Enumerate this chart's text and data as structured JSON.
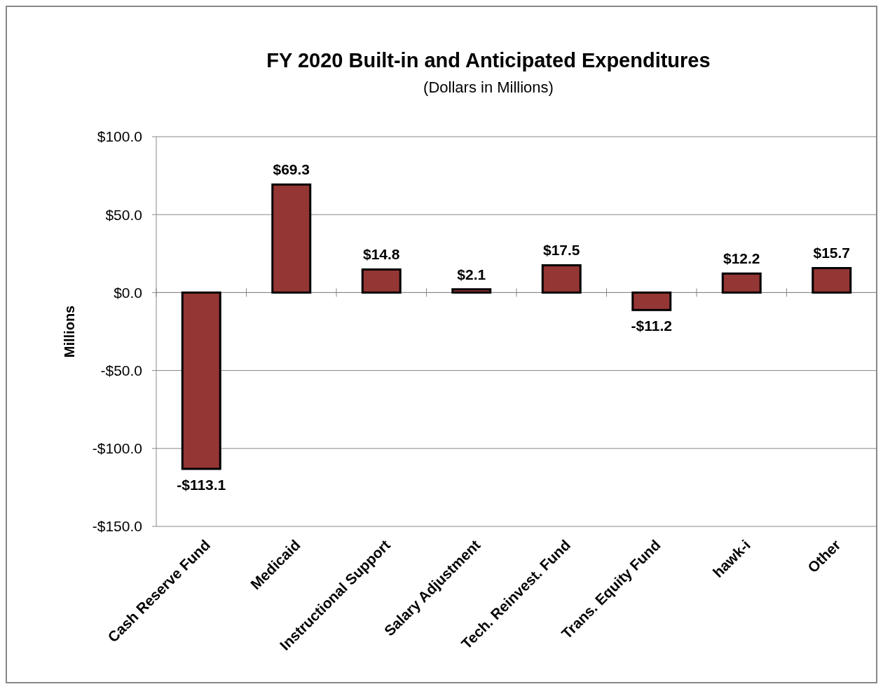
{
  "chart_data": {
    "type": "bar",
    "title": "FY 2020 Built-in and Anticipated Expenditures",
    "subtitle": "(Dollars in Millions)",
    "ylabel": "Millions",
    "categories": [
      "Cash Reserve Fund",
      "Medicaid",
      "Instructional Support",
      "Salary Adjustment",
      "Tech. Reinvest. Fund",
      "Trans. Equity Fund",
      "hawk-i",
      "Other"
    ],
    "values": [
      -113.1,
      69.3,
      14.8,
      2.1,
      17.5,
      -11.2,
      12.2,
      15.7
    ],
    "value_labels": [
      "-$113.1",
      "$69.3",
      "$14.8",
      "$2.1",
      "$17.5",
      "-$11.2",
      "$12.2",
      "$15.7"
    ],
    "color": "#943634",
    "ylim": [
      -150,
      100
    ],
    "yticks": [
      {
        "value": -150,
        "label": "-$150.0"
      },
      {
        "value": -100,
        "label": "-$100.0"
      },
      {
        "value": -50,
        "label": "-$50.0"
      },
      {
        "value": 0,
        "label": "$0.0"
      },
      {
        "value": 50,
        "label": "$50.0"
      },
      {
        "value": 100,
        "label": "$100.0"
      }
    ],
    "grid": "y"
  }
}
